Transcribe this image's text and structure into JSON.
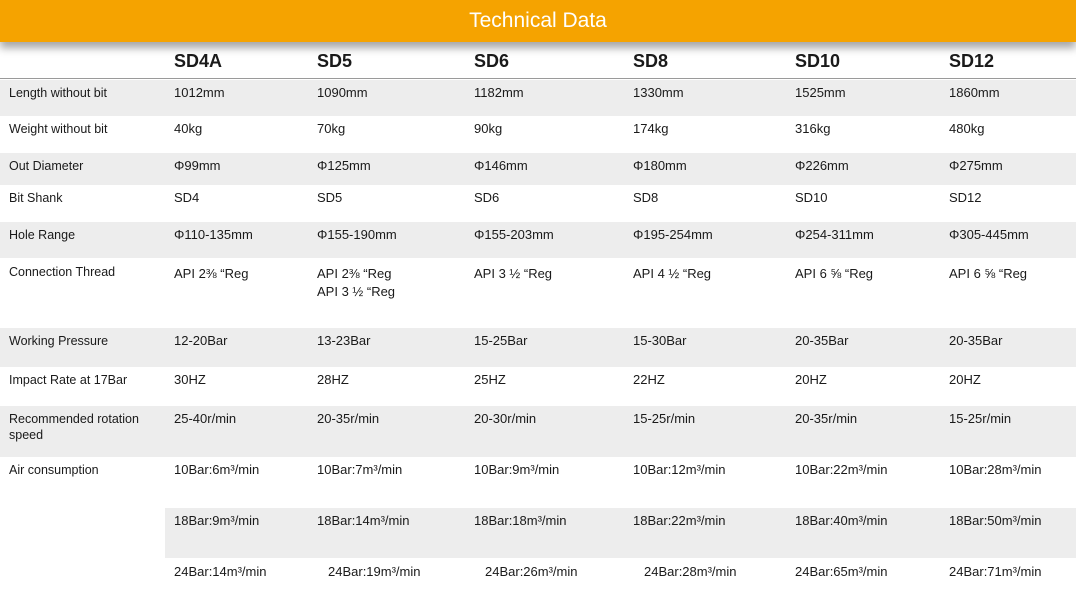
{
  "title": "Technical Data",
  "models": [
    "SD4A",
    "SD5",
    "SD6",
    "SD8",
    "SD10",
    "SD12"
  ],
  "rows": [
    {
      "label": "Length without bit",
      "values": [
        "1012mm",
        "1090mm",
        "1182mm",
        "1330mm",
        "1525mm",
        "1860mm"
      ]
    },
    {
      "label": "Weight without bit",
      "values": [
        "40kg",
        "70kg",
        "90kg",
        "174kg",
        "316kg",
        "480kg"
      ]
    },
    {
      "label": "Out Diameter",
      "values": [
        "Φ99mm",
        "Φ125mm",
        "Φ146mm",
        "Φ180mm",
        "Φ226mm",
        "Φ275mm"
      ]
    },
    {
      "label": "Bit Shank",
      "values": [
        "SD4",
        "SD5",
        "SD6",
        "SD8",
        "SD10",
        "SD12"
      ]
    },
    {
      "label": "Hole Range",
      "values": [
        "Φ110-135mm",
        "Φ155-190mm",
        "Φ155-203mm",
        "Φ195-254mm",
        "Φ254-311mm",
        "Φ305-445mm"
      ]
    },
    {
      "label": "Connection Thread",
      "values": [
        "API  2⅜ “Reg",
        "API  2⅜ “Reg",
        "API 3 ½  “Reg",
        "API 4 ½  “Reg",
        "API 6 ⅝  “Reg",
        "API 6 ⅝  “Reg"
      ],
      "values2": [
        "",
        "API 3 ½  “Reg",
        "",
        "",
        "",
        ""
      ]
    },
    {
      "label": "Working Pressure",
      "values": [
        "12-20Bar",
        "13-23Bar",
        "15-25Bar",
        "15-30Bar",
        "20-35Bar",
        "20-35Bar"
      ]
    },
    {
      "label": "Impact Rate at 17Bar",
      "values": [
        "30HZ",
        "28HZ",
        "25HZ",
        "22HZ",
        "20HZ",
        "20HZ"
      ]
    },
    {
      "label": "Recommended rotation speed",
      "values": [
        "25-40r/min",
        "20-35r/min",
        "20-30r/min",
        "15-25r/min",
        "20-35r/min",
        "15-25r/min"
      ]
    },
    {
      "label": "Air consumption",
      "values": [
        "10Bar:6m³/min",
        "10Bar:7m³/min",
        "10Bar:9m³/min",
        "10Bar:12m³/min",
        "10Bar:22m³/min",
        "10Bar:28m³/min"
      ]
    },
    {
      "label": "",
      "values": [
        "18Bar:9m³/min",
        "18Bar:14m³/min",
        "18Bar:18m³/min",
        "18Bar:22m³/min",
        "18Bar:40m³/min",
        "18Bar:50m³/min"
      ]
    },
    {
      "label": "",
      "values": [
        "24Bar:14m³/min",
        "24Bar:19m³/min",
        "24Bar:26m³/min",
        "24Bar:28m³/min",
        "24Bar:65m³/min",
        "24Bar:71m³/min"
      ]
    }
  ]
}
